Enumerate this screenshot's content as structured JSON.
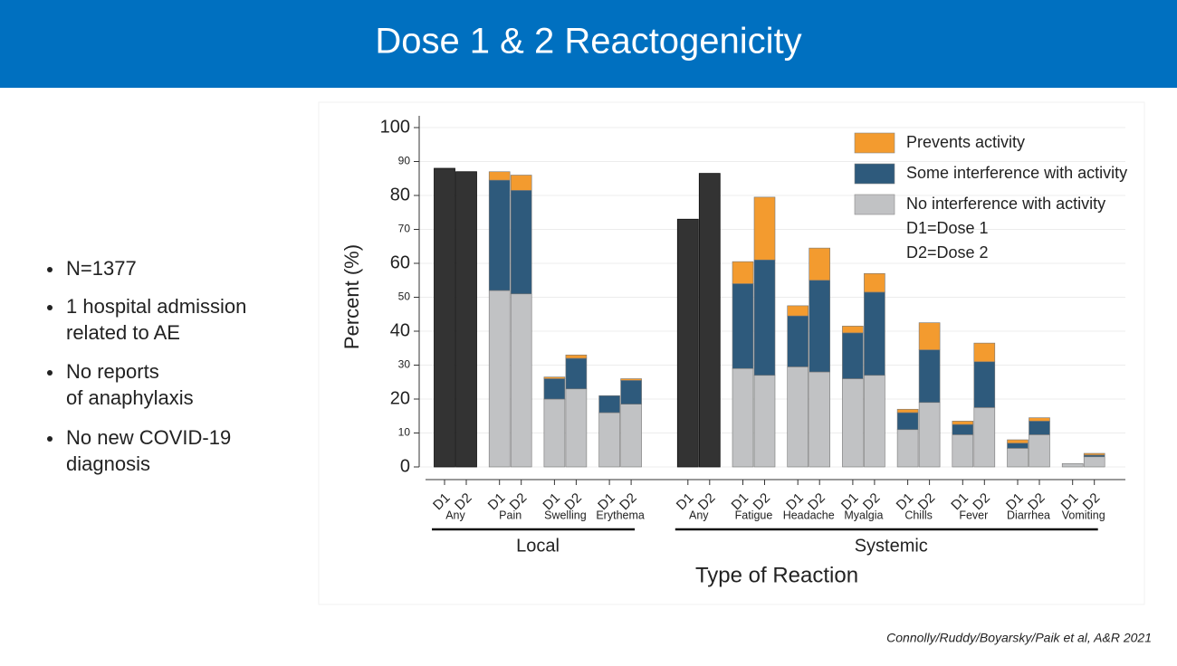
{
  "header": {
    "title": "Dose 1 & 2 Reactogenicity"
  },
  "bullets": [
    [
      "N=1377"
    ],
    [
      "1 hospital admission",
      "related to AE"
    ],
    [
      "No reports",
      "of anaphylaxis"
    ],
    [
      "No new COVID-19",
      "diagnosis"
    ]
  ],
  "citation": "Connolly/Ruddy/Boyarsky/Paik et al, A&R 2021",
  "chart_data": {
    "type": "bar",
    "stacked": true,
    "ylabel": "Percent (%)",
    "xlabel": "Type of Reaction",
    "ylim": [
      0,
      100
    ],
    "yticks": [
      0,
      10,
      20,
      30,
      40,
      50,
      60,
      70,
      80,
      90,
      100
    ],
    "grid": true,
    "series": [
      {
        "name": "No interference with activity",
        "color": "#c1c2c4"
      },
      {
        "name": "Some interference with activity",
        "color": "#2e5a7c"
      },
      {
        "name": "Prevents activity",
        "color": "#f39b2f"
      }
    ],
    "total_color": "#333333",
    "legend_notes": [
      "D1=Dose 1",
      "D2=Dose 2"
    ],
    "legend": "upper right",
    "sections": [
      {
        "name": "Local",
        "groups": [
          {
            "name": "Any",
            "bars": [
              {
                "label": "D1",
                "total": 88
              },
              {
                "label": "D2",
                "total": 87
              }
            ]
          },
          {
            "name": "Pain",
            "bars": [
              {
                "label": "D1",
                "values": [
                  52,
                  32.5,
                  2.5
                ]
              },
              {
                "label": "D2",
                "values": [
                  51,
                  30.5,
                  4.5
                ]
              }
            ]
          },
          {
            "name": "Swelling",
            "bars": [
              {
                "label": "D1",
                "values": [
                  20,
                  6,
                  0.5
                ]
              },
              {
                "label": "D2",
                "values": [
                  23,
                  9,
                  1
                ]
              }
            ]
          },
          {
            "name": "Erythema",
            "bars": [
              {
                "label": "D1",
                "values": [
                  16,
                  5,
                  0
                ]
              },
              {
                "label": "D2",
                "values": [
                  18.5,
                  7,
                  0.5
                ]
              }
            ]
          }
        ]
      },
      {
        "name": "Systemic",
        "groups": [
          {
            "name": "Any",
            "bars": [
              {
                "label": "D1",
                "total": 73
              },
              {
                "label": "D2",
                "total": 86.5
              }
            ]
          },
          {
            "name": "Fatigue",
            "bars": [
              {
                "label": "D1",
                "values": [
                  29,
                  25,
                  6.5
                ]
              },
              {
                "label": "D2",
                "values": [
                  27,
                  34,
                  18.5
                ]
              }
            ]
          },
          {
            "name": "Headache",
            "bars": [
              {
                "label": "D1",
                "values": [
                  29.5,
                  15,
                  3
                ]
              },
              {
                "label": "D2",
                "values": [
                  28,
                  27,
                  9.5
                ]
              }
            ]
          },
          {
            "name": "Myalgia",
            "bars": [
              {
                "label": "D1",
                "values": [
                  26,
                  13.5,
                  2
                ]
              },
              {
                "label": "D2",
                "values": [
                  27,
                  24.5,
                  5.5
                ]
              }
            ]
          },
          {
            "name": "Chills",
            "bars": [
              {
                "label": "D1",
                "values": [
                  11,
                  5,
                  1
                ]
              },
              {
                "label": "D2",
                "values": [
                  19,
                  15.5,
                  8
                ]
              }
            ]
          },
          {
            "name": "Fever",
            "bars": [
              {
                "label": "D1",
                "values": [
                  9.5,
                  3,
                  1
                ]
              },
              {
                "label": "D2",
                "values": [
                  17.5,
                  13.5,
                  5.5
                ]
              }
            ]
          },
          {
            "name": "Diarrhea",
            "bars": [
              {
                "label": "D1",
                "values": [
                  5.5,
                  1.5,
                  1
                ]
              },
              {
                "label": "D2",
                "values": [
                  9.5,
                  4,
                  1
                ]
              }
            ]
          },
          {
            "name": "Vomiting",
            "bars": [
              {
                "label": "D1",
                "values": [
                  1,
                  0,
                  0
                ]
              },
              {
                "label": "D2",
                "values": [
                  3,
                  0.5,
                  0.5
                ]
              }
            ]
          }
        ]
      }
    ]
  }
}
